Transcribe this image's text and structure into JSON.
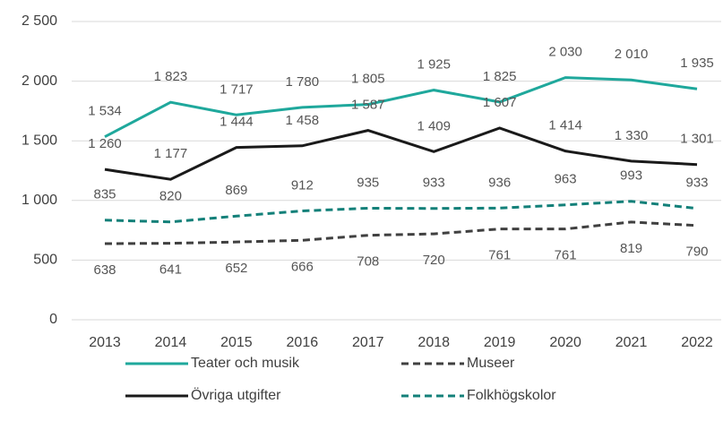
{
  "chart_data": {
    "type": "line",
    "categories": [
      "2013",
      "2014",
      "2015",
      "2016",
      "2017",
      "2018",
      "2019",
      "2020",
      "2021",
      "2022"
    ],
    "series": [
      {
        "name": "Teater och musik",
        "color": "#1fa89c",
        "dash": false,
        "values": [
          1534,
          1823,
          1717,
          1780,
          1805,
          1925,
          1825,
          2030,
          2010,
          1935
        ],
        "value_labels": [
          "1 534",
          "1 823",
          "1 717",
          "1 780",
          "1 805",
          "1 925",
          "1 825",
          "2 030",
          "2 010",
          "1 935"
        ]
      },
      {
        "name": "Museer",
        "color": "#404040",
        "dash": true,
        "values": [
          638,
          641,
          652,
          666,
          708,
          720,
          761,
          761,
          819,
          790
        ]
      },
      {
        "name": "Övriga utgifter",
        "color": "#1a1a1a",
        "dash": false,
        "values": [
          1260,
          1177,
          1444,
          1458,
          1587,
          1409,
          1607,
          1414,
          1330,
          1301
        ],
        "value_labels": [
          "1 260",
          "1 177",
          "1 444",
          "1 458",
          "1 587",
          "1 409",
          "1 607",
          "1 414",
          "1 330",
          "1 301"
        ]
      },
      {
        "name": "Folkhögskolor",
        "color": "#138079",
        "dash": true,
        "values": [
          835,
          820,
          869,
          912,
          935,
          933,
          936,
          963,
          993,
          933
        ]
      }
    ],
    "ylim": [
      0,
      2500
    ],
    "yticks": [
      0,
      500,
      {
        "value": 1000,
        "label": "1 000"
      },
      {
        "value": 1500,
        "label": "1 500"
      },
      {
        "value": 2000,
        "label": "2 000"
      },
      {
        "value": 2500,
        "label": "2 500"
      }
    ],
    "grid": true
  }
}
